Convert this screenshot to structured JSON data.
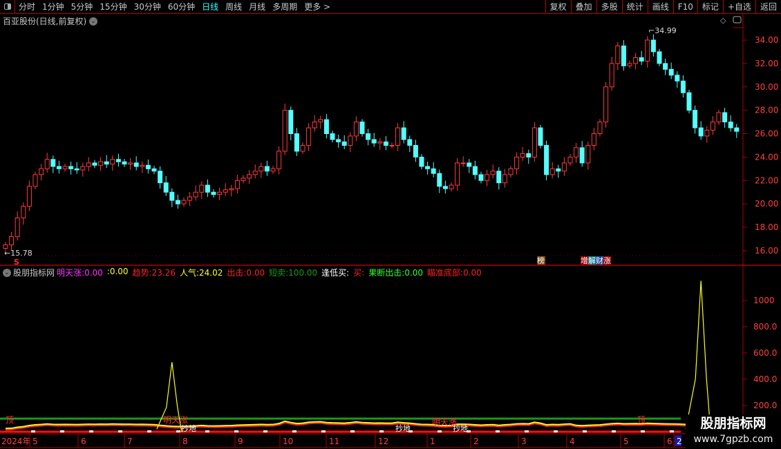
{
  "toolbar": {
    "periods": [
      "分时",
      "1分钟",
      "5分钟",
      "15分钟",
      "30分钟",
      "60分钟",
      "日线",
      "周线",
      "月线",
      "多周期",
      "更多 >"
    ],
    "active": "日线",
    "right_buttons": [
      "复权",
      "叠加",
      "多股",
      "统计",
      "画线",
      "F10",
      "标记",
      "+自选",
      "返回"
    ]
  },
  "title": "百亚股份(日线,前复权)",
  "price_axis": [
    "34.00",
    "32.00",
    "30.00",
    "28.00",
    "26.00",
    "24.00",
    "22.00",
    "20.00",
    "18.00",
    "16.00"
  ],
  "annotations": {
    "high": "34.99",
    "low": "15.78",
    "signal_s": "S",
    "badge1": "榜",
    "badge2": [
      "增",
      "解",
      "财",
      "涨"
    ]
  },
  "indicator": {
    "name": "股朋指标网",
    "items": [
      {
        "label": "明天涨:",
        "value": "0.00",
        "color": "#ff33ff"
      },
      {
        "label": ":",
        "value": "0.00",
        "color": "#ffff33"
      },
      {
        "label": "趋势:",
        "value": "23.26",
        "color": "#ff2020"
      },
      {
        "label": "人气:",
        "value": "24.02",
        "color": "#ffff33"
      },
      {
        "label": "出击:",
        "value": "0.00",
        "color": "#ff2020"
      },
      {
        "label": "短卖:",
        "value": "100.00",
        "color": "#1a9a1a"
      },
      {
        "label": "逢低买:",
        "value": "",
        "color": "#ffffff"
      },
      {
        "label": "买:",
        "value": "",
        "color": "#ff2020"
      },
      {
        "label": "果断出击:",
        "value": "0.00",
        "color": "#33ff33"
      },
      {
        "label": "瞄准底部:",
        "value": "0.00",
        "color": "#ff2020"
      }
    ],
    "axis": [
      "1000",
      "800.0",
      "600.0",
      "400.0",
      "200.0"
    ],
    "marks": {
      "up": "明天涨",
      "bottom": "抄地",
      "top": "顶"
    }
  },
  "date_axis": [
    "2024年",
    "5",
    "6",
    "7",
    "8",
    "9",
    "10",
    "11",
    "12",
    "1",
    "2",
    "3",
    "4",
    "5",
    "6",
    "2"
  ],
  "watermark": {
    "name": "股朋指标网",
    "url": "www.7gpzb.com"
  },
  "colors": {
    "up": "#ff3c3c",
    "down": "#54ffff",
    "axis": "#b00000",
    "grid": "#7a0000"
  },
  "chart_data": {
    "type": "candlestick",
    "ylim": [
      15,
      35
    ],
    "closes": [
      16.5,
      17.2,
      18.8,
      19.8,
      21.5,
      22.5,
      23.0,
      23.8,
      23.2,
      23.0,
      23.2,
      23.0,
      22.9,
      23.2,
      23.5,
      23.3,
      23.6,
      23.4,
      23.8,
      23.6,
      23.4,
      23.5,
      23.2,
      23.3,
      23.0,
      22.8,
      21.8,
      21.0,
      20.3,
      20.0,
      20.3,
      20.6,
      21.0,
      21.6,
      21.0,
      20.8,
      21.0,
      21.2,
      21.3,
      22.0,
      22.2,
      22.5,
      22.8,
      23.2,
      22.8,
      23.0,
      24.5,
      28.0,
      26.0,
      24.5,
      25.0,
      26.5,
      27.0,
      27.2,
      26.0,
      25.5,
      25.3,
      25.0,
      25.8,
      27.0,
      26.0,
      25.5,
      25.2,
      25.3,
      25.0,
      25.0,
      26.5,
      25.5,
      25.0,
      24.0,
      23.2,
      23.0,
      22.6,
      21.5,
      21.3,
      21.6,
      23.5,
      23.5,
      23.2,
      22.5,
      22.0,
      22.5,
      22.8,
      21.8,
      22.5,
      23.0,
      24.0,
      24.3,
      24.0,
      26.5,
      25.0,
      22.5,
      23.0,
      22.8,
      23.5,
      24.0,
      24.8,
      23.5,
      25.0,
      26.0,
      27.0,
      30.0,
      32.0,
      33.5,
      31.8,
      32.0,
      32.5,
      32.2,
      34.0,
      33.0,
      32.0,
      31.5,
      31.0,
      30.5,
      29.5,
      28.0,
      26.5,
      25.8,
      26.3,
      27.0,
      27.8,
      27.0,
      26.5,
      26.2
    ],
    "indicator_ylim": [
      0,
      1200
    ],
    "spikes": [
      {
        "bar": 28,
        "value": 530
      },
      {
        "bar": 117,
        "value": 1150
      }
    ],
    "baseline_value": 100
  }
}
